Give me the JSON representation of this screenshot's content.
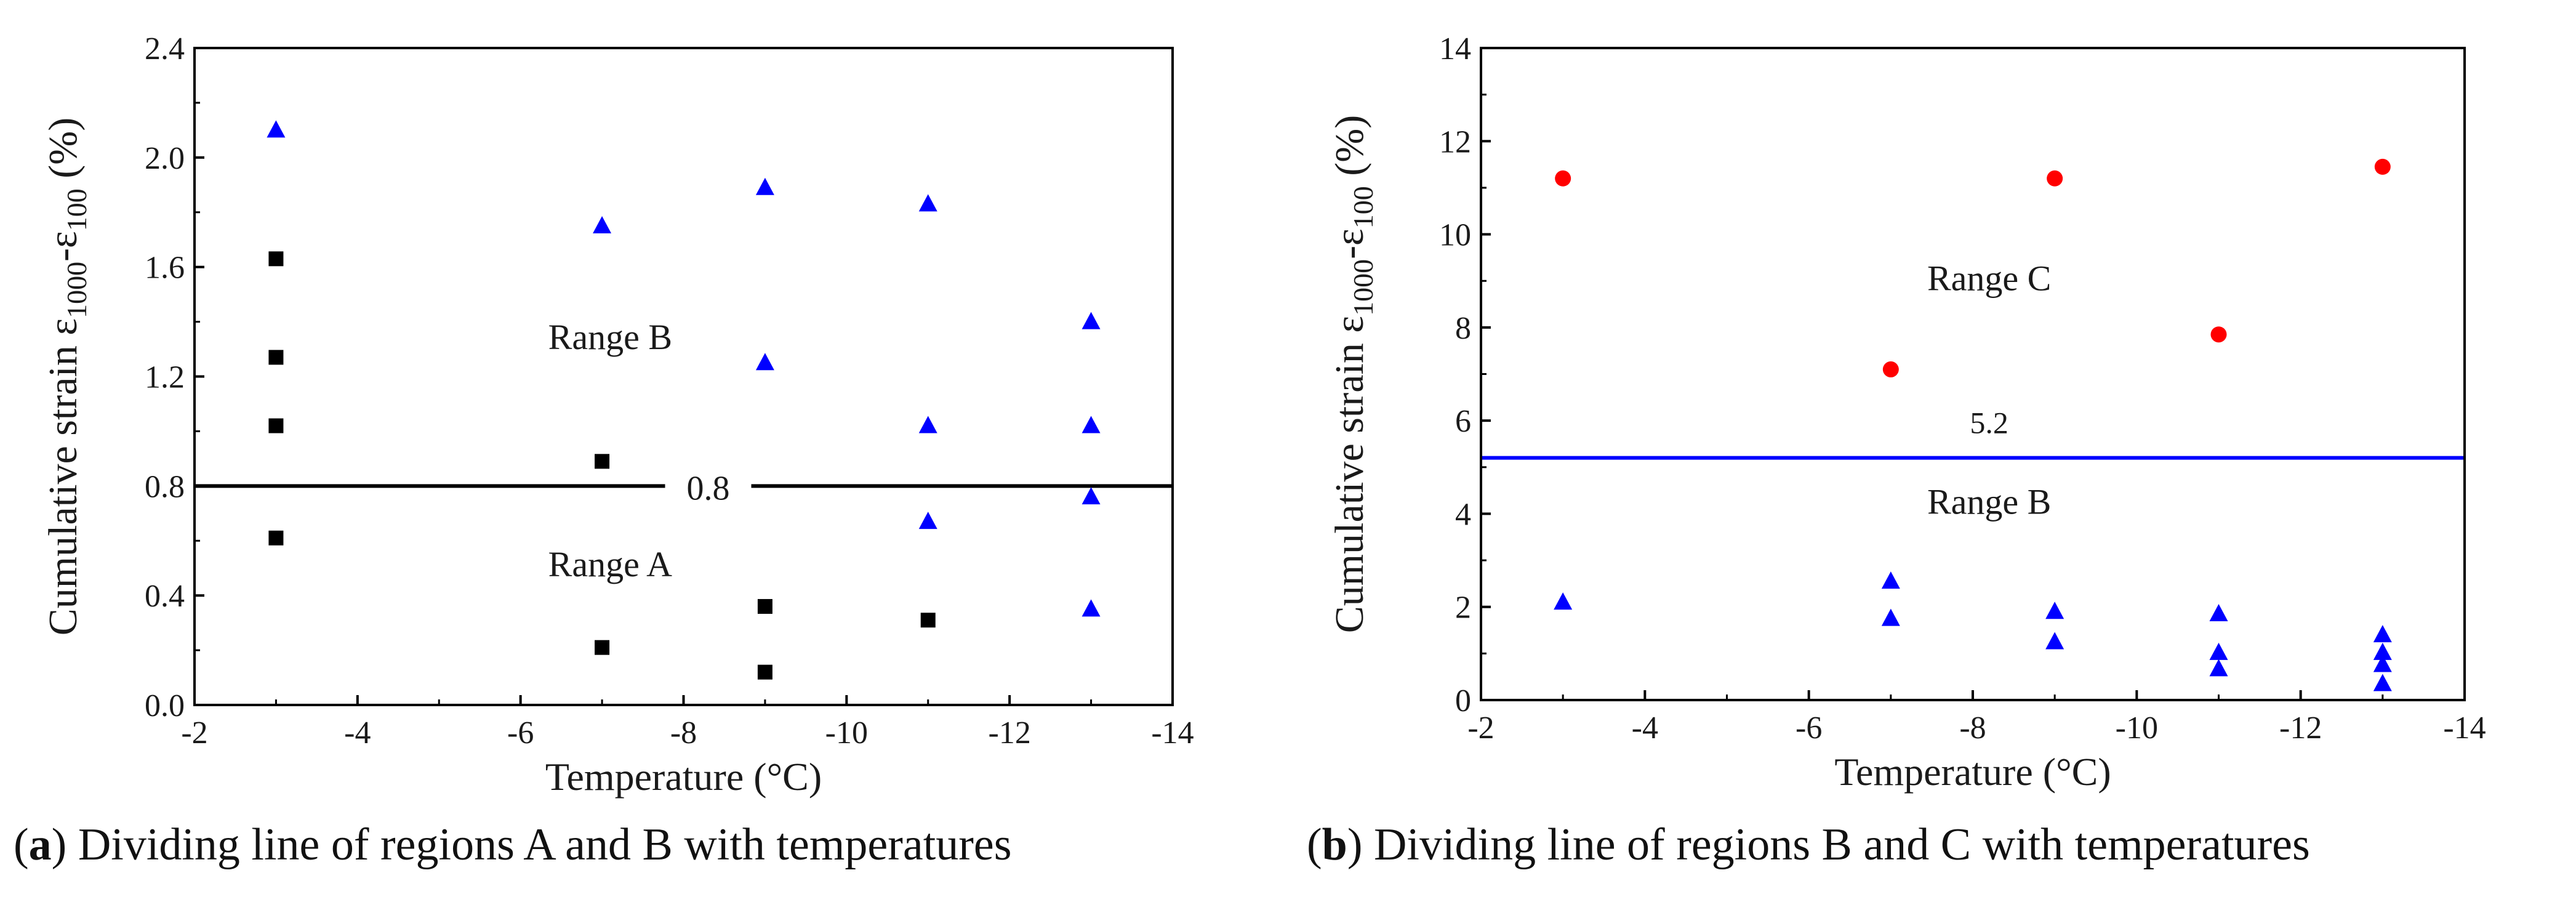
{
  "chart_data": [
    {
      "type": "scatter",
      "xlabel": "Temperature (°C)",
      "ylabel": {
        "main": "Cumulative strain ε",
        "sub1": "1000",
        "mid": "-ε",
        "sub2": "100",
        "unit": " (%)"
      },
      "xlim": [
        -2,
        -14
      ],
      "ylim": [
        0.0,
        2.4
      ],
      "xticks": [
        -2,
        -4,
        -6,
        -8,
        -10,
        -12,
        -14
      ],
      "yticks": [
        "0.0",
        "0.4",
        "0.8",
        "1.2",
        "1.6",
        "2.0",
        "2.4"
      ],
      "series": [
        {
          "name": "Range A / square",
          "marker": "square",
          "color": "#000000",
          "points": [
            [
              -3,
              1.63
            ],
            [
              -3,
              1.27
            ],
            [
              -3,
              1.02
            ],
            [
              -3,
              0.61
            ],
            [
              -7,
              0.89
            ],
            [
              -7,
              0.21
            ],
            [
              -9,
              0.36
            ],
            [
              -9,
              0.12
            ],
            [
              -11,
              0.31
            ]
          ]
        },
        {
          "name": "Range B / triangle",
          "marker": "triangle",
          "color": "#0000ff",
          "points": [
            [
              -3,
              2.1
            ],
            [
              -7,
              1.75
            ],
            [
              -9,
              1.89
            ],
            [
              -9,
              1.25
            ],
            [
              -11,
              1.83
            ],
            [
              -11,
              1.02
            ],
            [
              -11,
              0.67
            ],
            [
              -13,
              1.4
            ],
            [
              -13,
              1.02
            ],
            [
              -13,
              0.76
            ],
            [
              -13,
              0.35
            ]
          ]
        }
      ],
      "divider": {
        "y": 0.8,
        "label": "0.8",
        "color": "#000000"
      },
      "annotations": [
        {
          "text": "Range B",
          "x": -7.1,
          "y": 1.3
        },
        {
          "text": "Range A",
          "x": -7.1,
          "y": 0.47
        }
      ]
    },
    {
      "type": "scatter",
      "xlabel": "Temperature (°C)",
      "ylabel": {
        "main": "Cumulative strain ε",
        "sub1": "1000",
        "mid": "-ε",
        "sub2": "100",
        "unit": " (%)"
      },
      "xlim": [
        -2,
        -14
      ],
      "ylim": [
        0,
        14
      ],
      "xticks": [
        -2,
        -4,
        -6,
        -8,
        -10,
        -12,
        -14
      ],
      "yticks": [
        "0",
        "2",
        "4",
        "6",
        "8",
        "10",
        "12",
        "14"
      ],
      "series": [
        {
          "name": "Range C / circle",
          "marker": "circle",
          "color": "#ff0000",
          "points": [
            [
              -3,
              11.2
            ],
            [
              -7,
              7.1
            ],
            [
              -9,
              11.2
            ],
            [
              -11,
              7.85
            ],
            [
              -13,
              11.45
            ]
          ]
        },
        {
          "name": "Range B / triangle",
          "marker": "triangle",
          "color": "#0000ff",
          "points": [
            [
              -3,
              2.1
            ],
            [
              -7,
              2.55
            ],
            [
              -7,
              1.75
            ],
            [
              -9,
              1.9
            ],
            [
              -9,
              1.25
            ],
            [
              -11,
              1.85
            ],
            [
              -11,
              1.02
            ],
            [
              -11,
              0.67
            ],
            [
              -13,
              1.4
            ],
            [
              -13,
              1.02
            ],
            [
              -13,
              0.76
            ],
            [
              -13,
              0.35
            ]
          ]
        }
      ],
      "divider": {
        "y": 5.2,
        "label": "5.2",
        "color": "#0000ff"
      },
      "annotations": [
        {
          "text": "Range C",
          "x": -8.2,
          "y": 8.8
        },
        {
          "text": "Range B",
          "x": -8.2,
          "y": 4.0
        }
      ]
    }
  ],
  "captions": [
    {
      "letter": "a",
      "text": " Dividing line of regions A and B with temperatures"
    },
    {
      "letter": "b",
      "text": " Dividing line of regions B and C with temperatures"
    }
  ]
}
